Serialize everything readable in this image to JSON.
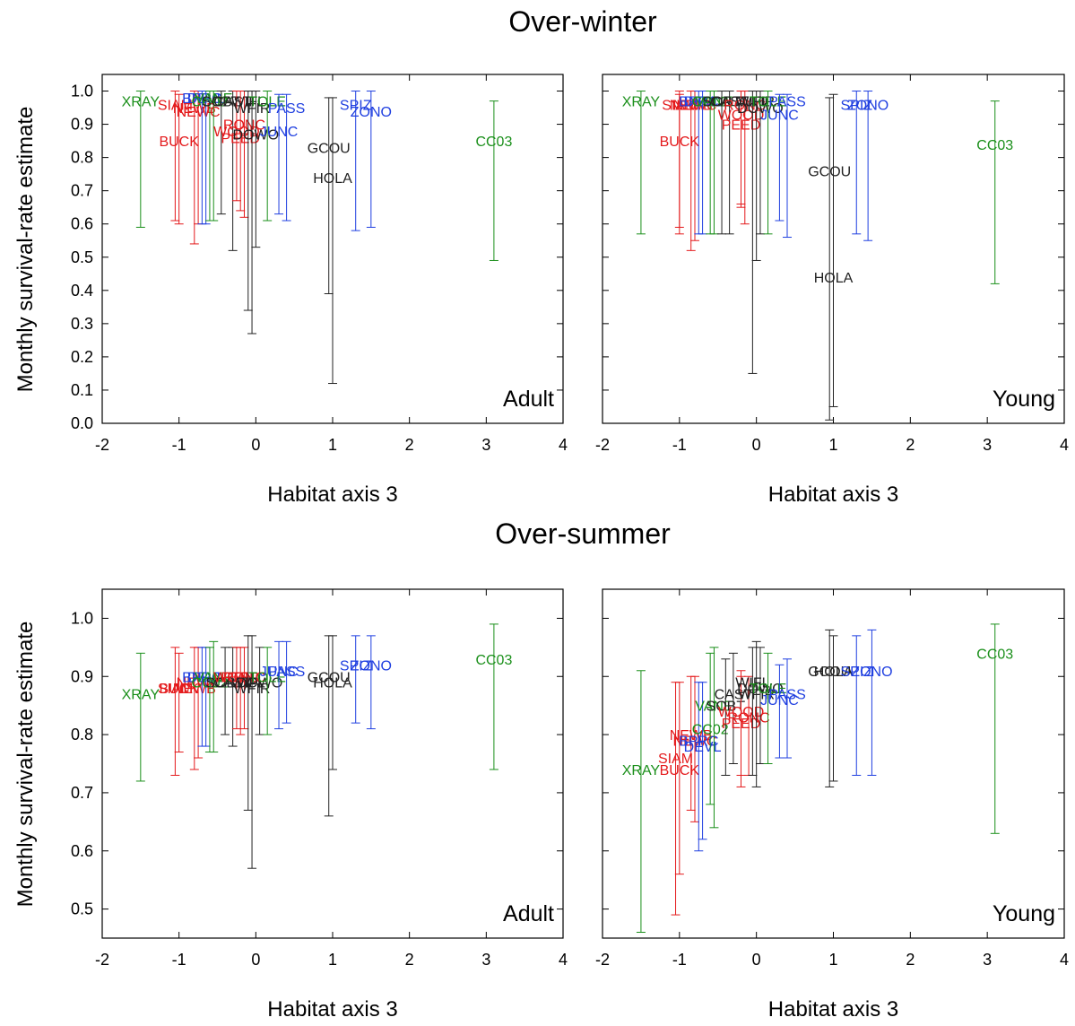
{
  "figure": {
    "section_titles": [
      "Over-winter",
      "Over-summer"
    ],
    "ylabel": "Monthly survival-rate estimate",
    "xlabel": "Habitat axis 3"
  },
  "colors": {
    "red": "#e41a1c",
    "green": "#1a8f1a",
    "blue": "#1f3fe0",
    "black": "#222222",
    "frame": "#000000"
  },
  "chart_data": [
    {
      "type": "scatter",
      "section": "Over-winter",
      "panel_label": "Adult",
      "xlim": [
        -2,
        4
      ],
      "ylim": [
        0,
        1.05
      ],
      "xticks": [
        -2,
        -1,
        0,
        1,
        2,
        3,
        4
      ],
      "yticks": [
        0.0,
        0.1,
        0.2,
        0.3,
        0.4,
        0.5,
        0.6,
        0.7,
        0.8,
        0.9,
        1.0
      ],
      "ytick_labels": [
        "0.0",
        "0.1",
        "0.2",
        "0.3",
        "0.4",
        "0.5",
        "0.6",
        "0.7",
        "0.8",
        "0.9",
        "1.0"
      ],
      "xlabel": "Habitat axis 3",
      "points": [
        {
          "label": "XRAY",
          "x": -1.5,
          "y": 0.97,
          "lo": 0.59,
          "hi": 1.0,
          "color": "green"
        },
        {
          "label": "SIAM",
          "x": -1.05,
          "y": 0.96,
          "lo": 0.61,
          "hi": 1.0,
          "color": "red"
        },
        {
          "label": "BUCK",
          "x": -1.0,
          "y": 0.85,
          "lo": 0.6,
          "hi": 0.99,
          "color": "red"
        },
        {
          "label": "NEWB",
          "x": -0.8,
          "y": 0.95,
          "lo": 0.54,
          "hi": 1.0,
          "color": "red"
        },
        {
          "label": "NEWC",
          "x": -0.75,
          "y": 0.94,
          "lo": 0.6,
          "hi": 1.0,
          "color": "red"
        },
        {
          "label": "BPRC",
          "x": -0.7,
          "y": 0.98,
          "lo": 0.6,
          "hi": 1.0,
          "color": "blue"
        },
        {
          "label": "DEVL",
          "x": -0.65,
          "y": 0.98,
          "lo": 0.6,
          "hi": 1.0,
          "color": "blue"
        },
        {
          "label": "CC02",
          "x": -0.6,
          "y": 0.97,
          "lo": 0.61,
          "hi": 1.0,
          "color": "green"
        },
        {
          "label": "VANE",
          "x": -0.55,
          "y": 0.98,
          "lo": 0.61,
          "hi": 1.0,
          "color": "green"
        },
        {
          "label": "SOBT",
          "x": -0.45,
          "y": 0.97,
          "lo": 0.63,
          "hi": 1.0,
          "color": "black"
        },
        {
          "label": "CAST",
          "x": -0.3,
          "y": 0.97,
          "lo": 0.52,
          "hi": 1.0,
          "color": "black"
        },
        {
          "label": "WOOD",
          "x": -0.25,
          "y": 0.88,
          "lo": 0.67,
          "hi": 1.0,
          "color": "red"
        },
        {
          "label": "PEED",
          "x": -0.2,
          "y": 0.86,
          "lo": 0.64,
          "hi": 1.0,
          "color": "red"
        },
        {
          "label": "RONC",
          "x": -0.15,
          "y": 0.9,
          "lo": 0.62,
          "hi": 1.0,
          "color": "red"
        },
        {
          "label": "WIFL",
          "x": -0.1,
          "y": 0.97,
          "lo": 0.34,
          "hi": 1.0,
          "color": "black"
        },
        {
          "label": "WFIR",
          "x": -0.05,
          "y": 0.95,
          "lo": 0.27,
          "hi": 1.0,
          "color": "black"
        },
        {
          "label": "DOWO",
          "x": 0.0,
          "y": 0.87,
          "lo": 0.53,
          "hi": 1.0,
          "color": "black"
        },
        {
          "label": "TOLE",
          "x": 0.15,
          "y": 0.97,
          "lo": 0.61,
          "hi": 1.0,
          "color": "green"
        },
        {
          "label": "JUNC",
          "x": 0.3,
          "y": 0.88,
          "lo": 0.63,
          "hi": 0.99,
          "color": "blue"
        },
        {
          "label": "PASS",
          "x": 0.4,
          "y": 0.95,
          "lo": 0.61,
          "hi": 0.99,
          "color": "blue"
        },
        {
          "label": "GCOU",
          "x": 0.95,
          "y": 0.83,
          "lo": 0.39,
          "hi": 0.98,
          "color": "black"
        },
        {
          "label": "HOLA",
          "x": 1.0,
          "y": 0.74,
          "lo": 0.12,
          "hi": 0.98,
          "color": "black"
        },
        {
          "label": "SPIZ",
          "x": 1.3,
          "y": 0.96,
          "lo": 0.58,
          "hi": 1.0,
          "color": "blue"
        },
        {
          "label": "ZONO",
          "x": 1.5,
          "y": 0.94,
          "lo": 0.59,
          "hi": 1.0,
          "color": "blue"
        },
        {
          "label": "CC03",
          "x": 3.1,
          "y": 0.85,
          "lo": 0.49,
          "hi": 0.97,
          "color": "green"
        }
      ]
    },
    {
      "type": "scatter",
      "section": "Over-winter",
      "panel_label": "Young",
      "xlim": [
        -2,
        4
      ],
      "ylim": [
        0,
        1.05
      ],
      "xticks": [
        -2,
        -1,
        0,
        1,
        2,
        3,
        4
      ],
      "yticks": [
        0.0,
        0.1,
        0.2,
        0.3,
        0.4,
        0.5,
        0.6,
        0.7,
        0.8,
        0.9,
        1.0
      ],
      "xlabel": "Habitat axis 3",
      "points": [
        {
          "label": "XRAY",
          "x": -1.5,
          "y": 0.97,
          "lo": 0.57,
          "hi": 1.0,
          "color": "green"
        },
        {
          "label": "SIAM",
          "x": -1.0,
          "y": 0.96,
          "lo": 0.59,
          "hi": 1.0,
          "color": "red"
        },
        {
          "label": "BUCK",
          "x": -1.0,
          "y": 0.85,
          "lo": 0.57,
          "hi": 0.99,
          "color": "red"
        },
        {
          "label": "NEWB",
          "x": -0.85,
          "y": 0.96,
          "lo": 0.52,
          "hi": 1.0,
          "color": "red"
        },
        {
          "label": "NEWC",
          "x": -0.8,
          "y": 0.96,
          "lo": 0.55,
          "hi": 1.0,
          "color": "red"
        },
        {
          "label": "BPRC",
          "x": -0.75,
          "y": 0.97,
          "lo": 0.57,
          "hi": 1.0,
          "color": "blue"
        },
        {
          "label": "DEVL",
          "x": -0.7,
          "y": 0.97,
          "lo": 0.57,
          "hi": 1.0,
          "color": "blue"
        },
        {
          "label": "CC02",
          "x": -0.6,
          "y": 0.97,
          "lo": 0.57,
          "hi": 1.0,
          "color": "green"
        },
        {
          "label": "VANE",
          "x": -0.55,
          "y": 0.97,
          "lo": 0.57,
          "hi": 1.0,
          "color": "green"
        },
        {
          "label": "SOBT",
          "x": -0.45,
          "y": 0.97,
          "lo": 0.57,
          "hi": 1.0,
          "color": "black"
        },
        {
          "label": "CAST",
          "x": -0.35,
          "y": 0.97,
          "lo": 0.57,
          "hi": 1.0,
          "color": "black"
        },
        {
          "label": "WOOD",
          "x": -0.2,
          "y": 0.93,
          "lo": 0.65,
          "hi": 1.0,
          "color": "red"
        },
        {
          "label": "PEED",
          "x": -0.2,
          "y": 0.9,
          "lo": 0.66,
          "hi": 1.0,
          "color": "red"
        },
        {
          "label": "RONC",
          "x": -0.15,
          "y": 0.96,
          "lo": 0.6,
          "hi": 1.0,
          "color": "red"
        },
        {
          "label": "WIFL",
          "x": -0.05,
          "y": 0.97,
          "lo": 0.15,
          "hi": 1.0,
          "color": "black"
        },
        {
          "label": "WFIR",
          "x": 0.0,
          "y": 0.97,
          "lo": 0.49,
          "hi": 1.0,
          "color": "black"
        },
        {
          "label": "DOWO",
          "x": 0.05,
          "y": 0.95,
          "lo": 0.57,
          "hi": 1.0,
          "color": "black"
        },
        {
          "label": "TOLE",
          "x": 0.15,
          "y": 0.97,
          "lo": 0.57,
          "hi": 1.0,
          "color": "green"
        },
        {
          "label": "JUNC",
          "x": 0.3,
          "y": 0.93,
          "lo": 0.61,
          "hi": 0.99,
          "color": "blue"
        },
        {
          "label": "PASS",
          "x": 0.4,
          "y": 0.97,
          "lo": 0.56,
          "hi": 0.99,
          "color": "blue"
        },
        {
          "label": "GCOU",
          "x": 0.95,
          "y": 0.76,
          "lo": 0.01,
          "hi": 0.98,
          "color": "black"
        },
        {
          "label": "HOLA",
          "x": 1.0,
          "y": 0.44,
          "lo": 0.05,
          "hi": 0.99,
          "color": "black"
        },
        {
          "label": "SPIZ",
          "x": 1.3,
          "y": 0.96,
          "lo": 0.57,
          "hi": 1.0,
          "color": "blue"
        },
        {
          "label": "ZONO",
          "x": 1.45,
          "y": 0.96,
          "lo": 0.55,
          "hi": 1.0,
          "color": "blue"
        },
        {
          "label": "CC03",
          "x": 3.1,
          "y": 0.84,
          "lo": 0.42,
          "hi": 0.97,
          "color": "green"
        }
      ]
    },
    {
      "type": "scatter",
      "section": "Over-summer",
      "panel_label": "Adult",
      "xlim": [
        -2,
        4
      ],
      "ylim": [
        0.45,
        1.05
      ],
      "xticks": [
        -2,
        -1,
        0,
        1,
        2,
        3,
        4
      ],
      "yticks": [
        0.5,
        0.6,
        0.7,
        0.8,
        0.9,
        1.0
      ],
      "ytick_labels": [
        "0.5",
        "0.6",
        "0.7",
        "0.8",
        "0.9",
        "1.0"
      ],
      "xlabel": "Habitat axis 3",
      "points": [
        {
          "label": "XRAY",
          "x": -1.5,
          "y": 0.87,
          "lo": 0.72,
          "hi": 0.94,
          "color": "green"
        },
        {
          "label": "SIAM",
          "x": -1.05,
          "y": 0.88,
          "lo": 0.73,
          "hi": 0.95,
          "color": "red"
        },
        {
          "label": "BUCK",
          "x": -1.0,
          "y": 0.88,
          "lo": 0.77,
          "hi": 0.94,
          "color": "red"
        },
        {
          "label": "NEWB",
          "x": -0.8,
          "y": 0.88,
          "lo": 0.74,
          "hi": 0.95,
          "color": "red"
        },
        {
          "label": "NEWC",
          "x": -0.75,
          "y": 0.89,
          "lo": 0.76,
          "hi": 0.95,
          "color": "red"
        },
        {
          "label": "BPRC",
          "x": -0.7,
          "y": 0.9,
          "lo": 0.78,
          "hi": 0.95,
          "color": "blue"
        },
        {
          "label": "DEVL",
          "x": -0.65,
          "y": 0.9,
          "lo": 0.78,
          "hi": 0.95,
          "color": "blue"
        },
        {
          "label": "CC02",
          "x": -0.6,
          "y": 0.89,
          "lo": 0.77,
          "hi": 0.95,
          "color": "green"
        },
        {
          "label": "VANE",
          "x": -0.55,
          "y": 0.9,
          "lo": 0.77,
          "hi": 0.96,
          "color": "green"
        },
        {
          "label": "SOBT",
          "x": -0.4,
          "y": 0.89,
          "lo": 0.8,
          "hi": 0.95,
          "color": "black"
        },
        {
          "label": "CAST",
          "x": -0.3,
          "y": 0.89,
          "lo": 0.78,
          "hi": 0.95,
          "color": "black"
        },
        {
          "label": "WOOD",
          "x": -0.25,
          "y": 0.9,
          "lo": 0.81,
          "hi": 0.95,
          "color": "red"
        },
        {
          "label": "PEED",
          "x": -0.2,
          "y": 0.9,
          "lo": 0.8,
          "hi": 0.95,
          "color": "red"
        },
        {
          "label": "RONC",
          "x": -0.15,
          "y": 0.9,
          "lo": 0.81,
          "hi": 0.95,
          "color": "red"
        },
        {
          "label": "WIFL",
          "x": -0.1,
          "y": 0.89,
          "lo": 0.67,
          "hi": 0.97,
          "color": "black"
        },
        {
          "label": "WFIR",
          "x": -0.05,
          "y": 0.88,
          "lo": 0.57,
          "hi": 0.97,
          "color": "black"
        },
        {
          "label": "DOWO",
          "x": 0.05,
          "y": 0.89,
          "lo": 0.8,
          "hi": 0.95,
          "color": "black"
        },
        {
          "label": "TOLE",
          "x": 0.15,
          "y": 0.9,
          "lo": 0.8,
          "hi": 0.95,
          "color": "green"
        },
        {
          "label": "JUNC",
          "x": 0.3,
          "y": 0.91,
          "lo": 0.81,
          "hi": 0.96,
          "color": "blue"
        },
        {
          "label": "PASS",
          "x": 0.4,
          "y": 0.91,
          "lo": 0.82,
          "hi": 0.96,
          "color": "blue"
        },
        {
          "label": "GCOU",
          "x": 0.95,
          "y": 0.9,
          "lo": 0.66,
          "hi": 0.97,
          "color": "black"
        },
        {
          "label": "HOLA",
          "x": 1.0,
          "y": 0.89,
          "lo": 0.74,
          "hi": 0.97,
          "color": "black"
        },
        {
          "label": "SPIZ",
          "x": 1.3,
          "y": 0.92,
          "lo": 0.82,
          "hi": 0.97,
          "color": "blue"
        },
        {
          "label": "ZONO",
          "x": 1.5,
          "y": 0.92,
          "lo": 0.81,
          "hi": 0.97,
          "color": "blue"
        },
        {
          "label": "CC03",
          "x": 3.1,
          "y": 0.93,
          "lo": 0.74,
          "hi": 0.99,
          "color": "green"
        }
      ]
    },
    {
      "type": "scatter",
      "section": "Over-summer",
      "panel_label": "Young",
      "xlim": [
        -2,
        4
      ],
      "ylim": [
        0.45,
        1.05
      ],
      "xticks": [
        -2,
        -1,
        0,
        1,
        2,
        3,
        4
      ],
      "yticks": [
        0.5,
        0.6,
        0.7,
        0.8,
        0.9,
        1.0
      ],
      "xlabel": "Habitat axis 3",
      "points": [
        {
          "label": "XRAY",
          "x": -1.5,
          "y": 0.74,
          "lo": 0.46,
          "hi": 0.91,
          "color": "green"
        },
        {
          "label": "SIAM",
          "x": -1.05,
          "y": 0.76,
          "lo": 0.49,
          "hi": 0.89,
          "color": "red"
        },
        {
          "label": "BUCK",
          "x": -1.0,
          "y": 0.74,
          "lo": 0.56,
          "hi": 0.89,
          "color": "red"
        },
        {
          "label": "NEWB",
          "x": -0.85,
          "y": 0.8,
          "lo": 0.67,
          "hi": 0.9,
          "color": "red"
        },
        {
          "label": "NEWC",
          "x": -0.8,
          "y": 0.79,
          "lo": 0.65,
          "hi": 0.9,
          "color": "red"
        },
        {
          "label": "BPRC",
          "x": -0.75,
          "y": 0.79,
          "lo": 0.6,
          "hi": 0.89,
          "color": "blue"
        },
        {
          "label": "DEVL",
          "x": -0.7,
          "y": 0.78,
          "lo": 0.62,
          "hi": 0.89,
          "color": "blue"
        },
        {
          "label": "CC02",
          "x": -0.6,
          "y": 0.81,
          "lo": 0.68,
          "hi": 0.94,
          "color": "green"
        },
        {
          "label": "VANE",
          "x": -0.55,
          "y": 0.85,
          "lo": 0.64,
          "hi": 0.95,
          "color": "green"
        },
        {
          "label": "SOBT",
          "x": -0.4,
          "y": 0.85,
          "lo": 0.73,
          "hi": 0.93,
          "color": "black"
        },
        {
          "label": "CAST",
          "x": -0.3,
          "y": 0.87,
          "lo": 0.75,
          "hi": 0.94,
          "color": "black"
        },
        {
          "label": "WOOD",
          "x": -0.2,
          "y": 0.84,
          "lo": 0.73,
          "hi": 0.91,
          "color": "red"
        },
        {
          "label": "PEED",
          "x": -0.2,
          "y": 0.82,
          "lo": 0.71,
          "hi": 0.9,
          "color": "red"
        },
        {
          "label": "RONC",
          "x": -0.1,
          "y": 0.83,
          "lo": 0.73,
          "hi": 0.9,
          "color": "red"
        },
        {
          "label": "WIFL",
          "x": -0.05,
          "y": 0.89,
          "lo": 0.73,
          "hi": 0.95,
          "color": "black"
        },
        {
          "label": "WFIR",
          "x": 0.0,
          "y": 0.87,
          "lo": 0.71,
          "hi": 0.96,
          "color": "black"
        },
        {
          "label": "DOWO",
          "x": 0.05,
          "y": 0.88,
          "lo": 0.75,
          "hi": 0.95,
          "color": "black"
        },
        {
          "label": "TOLE",
          "x": 0.15,
          "y": 0.88,
          "lo": 0.75,
          "hi": 0.94,
          "color": "green"
        },
        {
          "label": "JUNC",
          "x": 0.3,
          "y": 0.86,
          "lo": 0.76,
          "hi": 0.92,
          "color": "blue"
        },
        {
          "label": "PASS",
          "x": 0.4,
          "y": 0.87,
          "lo": 0.76,
          "hi": 0.93,
          "color": "blue"
        },
        {
          "label": "GCOU",
          "x": 0.95,
          "y": 0.91,
          "lo": 0.71,
          "hi": 0.98,
          "color": "black"
        },
        {
          "label": "HOLA",
          "x": 1.0,
          "y": 0.91,
          "lo": 0.72,
          "hi": 0.97,
          "color": "black"
        },
        {
          "label": "SPIZ",
          "x": 1.3,
          "y": 0.91,
          "lo": 0.73,
          "hi": 0.97,
          "color": "blue"
        },
        {
          "label": "ZONO",
          "x": 1.5,
          "y": 0.91,
          "lo": 0.73,
          "hi": 0.98,
          "color": "blue"
        },
        {
          "label": "CC03",
          "x": 3.1,
          "y": 0.94,
          "lo": 0.63,
          "hi": 0.99,
          "color": "green"
        }
      ]
    }
  ]
}
